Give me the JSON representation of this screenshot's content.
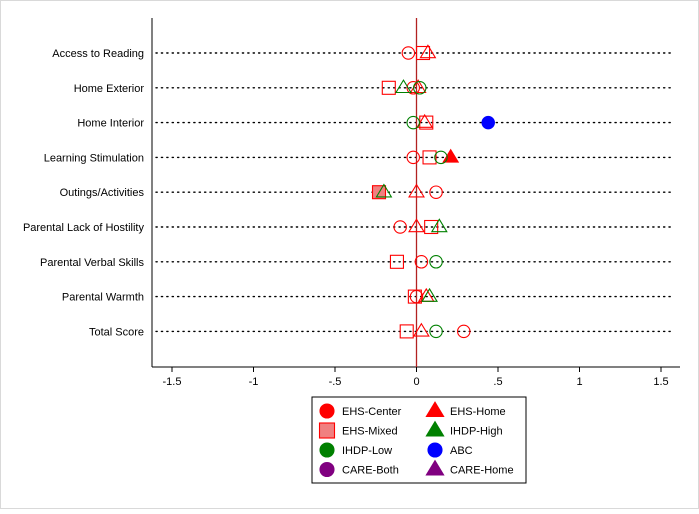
{
  "chart_data": {
    "type": "scatter",
    "title": "",
    "xlabel": "",
    "ylabel": "",
    "xlim": [
      -1.5,
      1.5
    ],
    "xticks": [
      -1.5,
      -1,
      -0.5,
      0,
      0.5,
      1,
      1.5
    ],
    "xtick_labels": [
      "-1.5",
      "-1",
      "-.5",
      "0",
      ".5",
      "1",
      "1.5"
    ],
    "reference_line_x": 0,
    "grid": "dotted row lines",
    "categories": [
      "Access to Reading",
      "Home Exterior",
      "Home Interior",
      "Learning Stimulation",
      "Outings/Activities",
      "Parental Lack of Hostility",
      "Parental Verbal Skills",
      "Parental Warmth",
      "Total Score"
    ],
    "series": [
      {
        "name": "EHS-Center",
        "marker": "circle",
        "color": "#ff0000",
        "values": [
          -0.05,
          -0.02,
          null,
          -0.02,
          0.12,
          -0.1,
          0.03,
          0.0,
          0.29
        ],
        "filled": [
          false,
          false,
          false,
          false,
          false,
          false,
          false,
          false,
          false
        ]
      },
      {
        "name": "EHS-Home",
        "marker": "triangle",
        "color": "#ff0000",
        "values": [
          0.07,
          0.01,
          0.05,
          0.21,
          0.0,
          0.0,
          null,
          0.06,
          0.03
        ],
        "filled": [
          false,
          false,
          false,
          true,
          false,
          false,
          false,
          false,
          false
        ]
      },
      {
        "name": "EHS-Mixed",
        "marker": "square",
        "color": "#ff0000",
        "values": [
          0.04,
          -0.17,
          0.06,
          0.08,
          -0.23,
          0.09,
          -0.12,
          -0.01,
          -0.06
        ],
        "filled": [
          false,
          false,
          false,
          false,
          true,
          false,
          false,
          false,
          false
        ]
      },
      {
        "name": "IHDP-High",
        "marker": "triangle",
        "color": "#008000",
        "values": [
          null,
          -0.08,
          null,
          null,
          -0.2,
          0.14,
          null,
          0.08,
          null
        ],
        "filled": [
          false,
          false,
          false,
          false,
          false,
          false,
          false,
          false,
          false
        ]
      },
      {
        "name": "IHDP-Low",
        "marker": "circle",
        "color": "#008000",
        "values": [
          null,
          0.02,
          -0.02,
          0.15,
          null,
          null,
          0.12,
          null,
          0.12
        ],
        "filled": [
          false,
          false,
          false,
          false,
          false,
          false,
          false,
          false,
          false
        ]
      },
      {
        "name": "ABC",
        "marker": "circle",
        "color": "#0000ff",
        "values": [
          null,
          null,
          0.44,
          null,
          null,
          null,
          null,
          null,
          null
        ],
        "filled": [
          false,
          false,
          true,
          false,
          false,
          false,
          false,
          false,
          false
        ]
      },
      {
        "name": "CARE-Both",
        "marker": "circle",
        "color": "#800080",
        "values": [
          null,
          null,
          null,
          null,
          null,
          null,
          null,
          null,
          null
        ],
        "filled": [
          false,
          false,
          false,
          false,
          false,
          false,
          false,
          false,
          false
        ]
      },
      {
        "name": "CARE-Home",
        "marker": "triangle",
        "color": "#800080",
        "values": [
          null,
          null,
          null,
          null,
          null,
          null,
          null,
          null,
          null
        ],
        "filled": [
          false,
          false,
          false,
          false,
          false,
          false,
          false,
          false,
          false
        ]
      }
    ],
    "legend": {
      "placement": "bottom-center",
      "entries": [
        {
          "label": "EHS-Center",
          "marker": "circle",
          "color": "#ff0000"
        },
        {
          "label": "EHS-Home",
          "marker": "triangle",
          "color": "#ff0000"
        },
        {
          "label": "EHS-Mixed",
          "marker": "square",
          "color": "#ff0000"
        },
        {
          "label": "IHDP-High",
          "marker": "triangle",
          "color": "#008000"
        },
        {
          "label": "IHDP-Low",
          "marker": "circle",
          "color": "#008000"
        },
        {
          "label": "ABC",
          "marker": "circle",
          "color": "#0000ff"
        },
        {
          "label": "CARE-Both",
          "marker": "circle",
          "color": "#800080"
        },
        {
          "label": "CARE-Home",
          "marker": "triangle",
          "color": "#800080"
        }
      ]
    },
    "colors": {
      "reference_line": "#b22222",
      "axis": "#000000",
      "marker_fill_filled": "#ff0000",
      "marker_fill_filled_alt": "#f08080"
    }
  }
}
